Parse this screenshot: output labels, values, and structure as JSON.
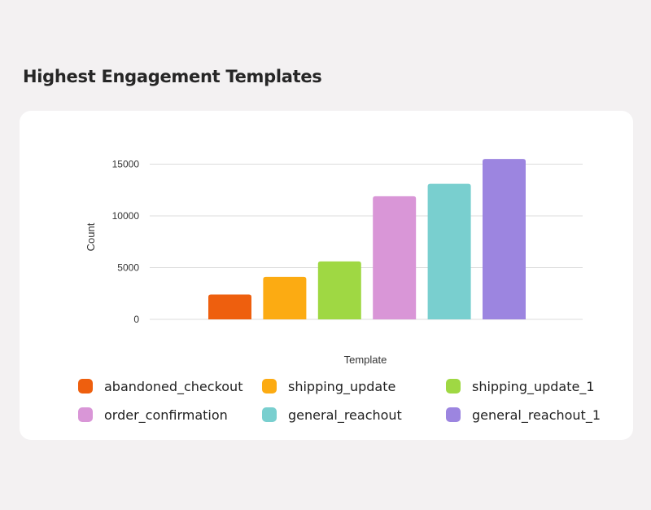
{
  "page": {
    "title": "Highest Engagement Templates"
  },
  "chart_data": {
    "type": "bar",
    "title": "Highest Engagement Templates",
    "xlabel": "Template",
    "ylabel": "Count",
    "ylim": [
      0,
      16000
    ],
    "yticks": [
      0,
      5000,
      10000,
      15000
    ],
    "grid": true,
    "legend_position": "bottom",
    "categories": [
      "abandoned_checkout",
      "shipping_update",
      "shipping_update_1",
      "order_confirmation",
      "general_reachout",
      "general_reachout_1"
    ],
    "values": [
      2400,
      4100,
      5600,
      11900,
      13100,
      15500
    ],
    "colors": [
      "#ee5f0e",
      "#fcab12",
      "#9fd843",
      "#d996d7",
      "#79cfcf",
      "#9c85e0"
    ]
  }
}
